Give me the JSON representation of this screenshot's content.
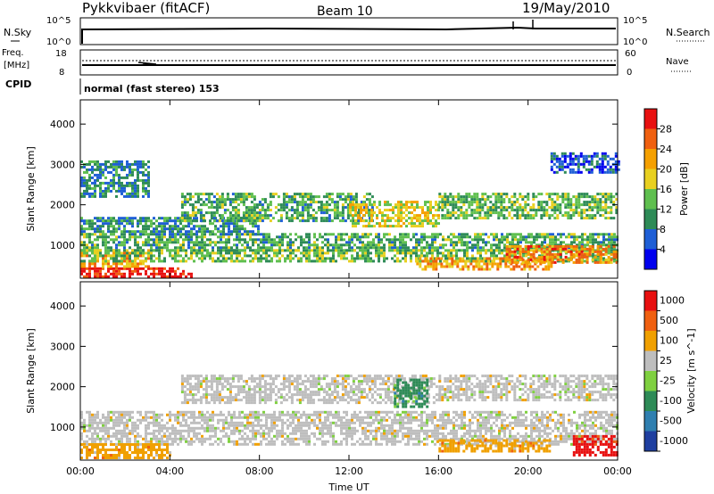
{
  "header": {
    "title": "Pykkvibaer (fitACF)",
    "beam": "Beam 10",
    "date": "19/May/2010"
  },
  "top_panels": {
    "nsky": {
      "left_label": "N.Sky",
      "right_label": "N.Search",
      "left_ticks": [
        "10^5",
        "10^0"
      ],
      "right_ticks": [
        "10^5",
        "10^0"
      ]
    },
    "freq": {
      "left_label_1": "Freq.",
      "left_label_2": "[MHz]",
      "right_label": "Nave",
      "left_ticks": [
        "18",
        "8"
      ],
      "right_ticks": [
        "60",
        "0"
      ]
    },
    "cpid": {
      "label": "CPID",
      "value": "normal (fast stereo) 153"
    }
  },
  "chart_data": [
    {
      "type": "heatmap",
      "name": "power",
      "ylabel": "Slant Range [km]",
      "xlabel": "",
      "yticks": [
        1000,
        2000,
        3000,
        4000
      ],
      "ylim": [
        180,
        4600
      ],
      "colorbar": {
        "label": "Power [dB]",
        "ticks": [
          4,
          8,
          12,
          16,
          20,
          24,
          28
        ],
        "colors": [
          "#0000ee",
          "#1f5fd6",
          "#2e8b57",
          "#5fbf4f",
          "#e8d020",
          "#f5a000",
          "#f06010",
          "#e81010"
        ],
        "range": [
          0,
          32
        ]
      },
      "bands": [
        {
          "t": [
            0,
            5
          ],
          "r": [
            200,
            450
          ],
          "level": 30
        },
        {
          "t": [
            0,
            3
          ],
          "r": [
            450,
            900
          ],
          "level": 22
        },
        {
          "t": [
            0,
            24
          ],
          "r": [
            900,
            1300
          ],
          "level": 12
        },
        {
          "t": [
            0,
            24
          ],
          "r": [
            600,
            900
          ],
          "level": 14
        },
        {
          "t": [
            0,
            8
          ],
          "r": [
            1300,
            1700
          ],
          "level": 10
        },
        {
          "t": [
            4.5,
            13
          ],
          "r": [
            1600,
            2300
          ],
          "level": 12
        },
        {
          "t": [
            12,
            16
          ],
          "r": [
            1500,
            2100
          ],
          "level": 18
        },
        {
          "t": [
            16,
            24
          ],
          "r": [
            1700,
            2300
          ],
          "level": 13
        },
        {
          "t": [
            15,
            21
          ],
          "r": [
            400,
            700
          ],
          "level": 22
        },
        {
          "t": [
            19,
            24
          ],
          "r": [
            600,
            1000
          ],
          "level": 24
        },
        {
          "t": [
            0,
            3
          ],
          "r": [
            2200,
            3100
          ],
          "level": 9
        },
        {
          "t": [
            21,
            24
          ],
          "r": [
            2800,
            3300
          ],
          "level": 6
        }
      ]
    },
    {
      "type": "heatmap",
      "name": "velocity",
      "ylabel": "Slant Range [km]",
      "xlabel": "Time UT",
      "yticks": [
        1000,
        2000,
        3000,
        4000
      ],
      "ylim": [
        180,
        4600
      ],
      "xticks": [
        "00:00",
        "04:00",
        "08:00",
        "12:00",
        "16:00",
        "20:00",
        "00:00"
      ],
      "colorbar": {
        "label": "Velocity [m s^-1]",
        "ticks": [
          1000,
          500,
          100,
          25,
          -25,
          -100,
          -500,
          -1000
        ],
        "colors": [
          "#1f3fa0",
          "#2f7fb0",
          "#2e8b57",
          "#7fd040",
          "#bebebe",
          "#f0a000",
          "#f06010",
          "#e81010"
        ]
      },
      "bands": [
        {
          "t": [
            0,
            24
          ],
          "r": [
            600,
            1400
          ],
          "level": "gray"
        },
        {
          "t": [
            4.5,
            16
          ],
          "r": [
            1600,
            2300
          ],
          "level": "gray"
        },
        {
          "t": [
            16,
            24
          ],
          "r": [
            1700,
            2300
          ],
          "level": "gray"
        },
        {
          "t": [
            0,
            4
          ],
          "r": [
            250,
            600
          ],
          "level": "orange"
        },
        {
          "t": [
            16,
            21
          ],
          "r": [
            400,
            700
          ],
          "level": "orange"
        },
        {
          "t": [
            14,
            15.5
          ],
          "r": [
            1500,
            2200
          ],
          "level": "green"
        },
        {
          "t": [
            22,
            24
          ],
          "r": [
            300,
            800
          ],
          "level": "red"
        }
      ]
    }
  ]
}
